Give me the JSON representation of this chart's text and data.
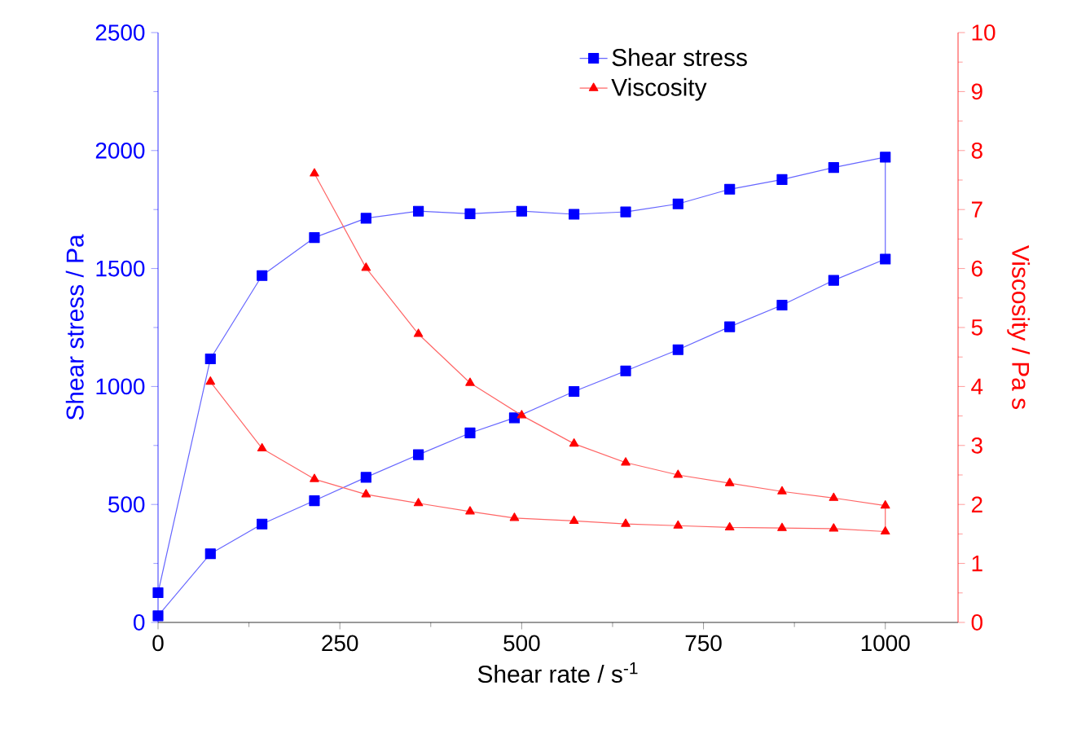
{
  "chart_data": {
    "type": "line",
    "xlabel": "Shear rate / s$^{-1}$",
    "ylabel": "Shear stress / Pa",
    "y2label": "Viscosity / Pa s",
    "xlim": [
      0,
      1100
    ],
    "xticks": [
      0,
      250,
      500,
      750,
      1000
    ],
    "ylim": [
      0,
      2500
    ],
    "yticks": [
      0,
      500,
      1000,
      1500,
      2000,
      2500
    ],
    "y2lim": [
      0,
      10
    ],
    "y2ticks": [
      0,
      1,
      2,
      3,
      4,
      5,
      6,
      7,
      8,
      9,
      10
    ],
    "legend": "top right",
    "series": [
      {
        "name": "Shear stress",
        "color": "#0000ff",
        "marker": "square",
        "x": [
          0,
          72,
          143,
          215,
          286,
          358,
          429,
          500,
          572,
          643,
          715,
          786,
          858,
          929,
          1000,
          1000,
          929,
          858,
          786,
          715,
          643,
          572,
          490,
          429,
          358,
          286,
          215,
          143,
          72,
          0
        ],
        "values": [
          126,
          1117,
          1470,
          1631,
          1713,
          1743,
          1732,
          1743,
          1730,
          1740,
          1774,
          1836,
          1877,
          1928,
          1972,
          1540,
          1450,
          1345,
          1253,
          1156,
          1066,
          979,
          867,
          803,
          711,
          615,
          516,
          417,
          291,
          28
        ]
      },
      {
        "name": "Viscosity",
        "color": "#ff0000",
        "marker": "triangle",
        "axis": "y2",
        "x": [
          215,
          286,
          358,
          429,
          500,
          572,
          643,
          715,
          786,
          858,
          929,
          1000,
          1000,
          929,
          858,
          786,
          715,
          643,
          572,
          490,
          429,
          358,
          286,
          215,
          143,
          72
        ],
        "values": [
          7.61,
          6.01,
          4.89,
          4.06,
          3.51,
          3.03,
          2.71,
          2.5,
          2.36,
          2.22,
          2.11,
          1.98,
          1.54,
          1.59,
          1.6,
          1.61,
          1.64,
          1.67,
          1.72,
          1.77,
          1.88,
          2.02,
          2.17,
          2.43,
          2.95,
          4.08
        ]
      }
    ]
  }
}
